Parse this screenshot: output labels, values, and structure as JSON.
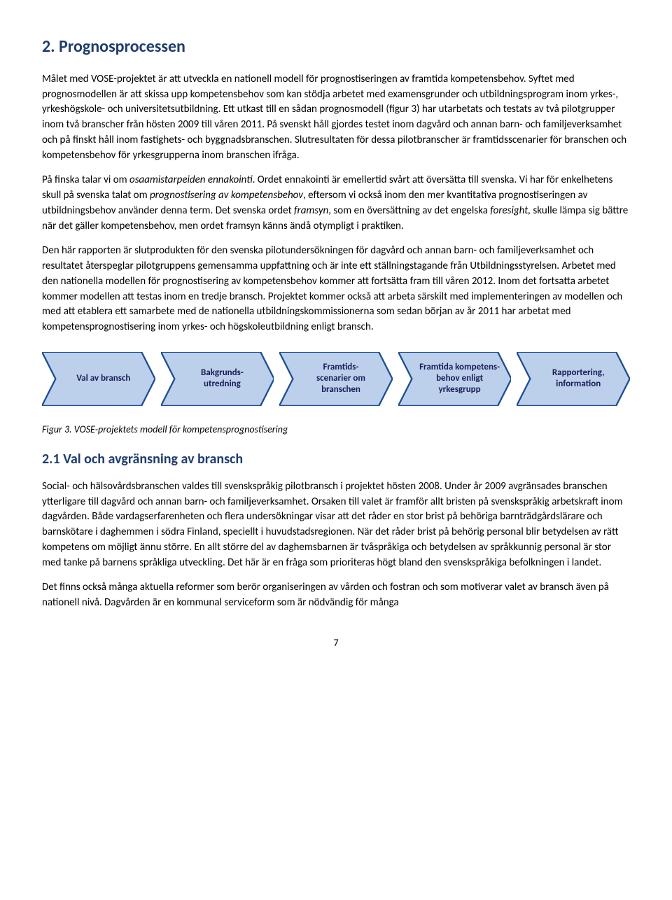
{
  "heading1": "2. Prognosprocessen",
  "p1_a": "Målet med VOSE-projektet är att utveckla en nationell modell för prognostiseringen av framtida kompetensbehov. Syftet med prognosmodellen är att skissa upp kompetensbehov som kan stödja arbetet med examensgrunder och utbildningsprogram inom yrkes-, yrkeshögskole- och universitetsutbildning. Ett utkast till en sådan prognosmodell (figur 3) har utarbetats och testats av två pilotgrupper inom två branscher från hösten 2009 till våren 2011. På svenskt håll gjordes testet inom dagvård och annan barn- och familjeverksamhet och på finskt håll inom fastighets- och byggnadsbranschen. Slutresultaten för dessa pilotbranscher är framtidsscenarier för branschen och kompetensbehov för yrkesgrupperna inom branschen ifråga.",
  "p2_a": "På finska talar vi om ",
  "p2_i1": "osaamistarpeiden ennakointi",
  "p2_b": ". Ordet ennakointi är emellertid svårt att översätta till svenska. Vi har för enkelhetens skull på svenska talat om ",
  "p2_i2": "prognostisering av kompetensbehov",
  "p2_c": ", eftersom vi också inom den mer kvantitativa prognostiseringen av utbildningsbehov använder denna term. Det svenska ordet ",
  "p2_i3": "framsyn",
  "p2_d": ", som en översättning av det engelska ",
  "p2_i4": "foresight,",
  "p2_e": " skulle lämpa sig bättre när det gäller kompetensbehov, men ordet framsyn känns ändå otympligt i praktiken.",
  "p3": "Den här rapporten är slutprodukten för den svenska pilotundersökningen för dagvård och annan barn- och familjeverksamhet och resultatet återspeglar pilotgruppens gemensamma uppfattning och är inte ett ställningstagande från Utbildningsstyrelsen. Arbetet med den nationella modellen för prognostisering av kompetensbehov kommer att fortsätta fram till våren 2012. Inom det fortsatta arbetet kommer modellen att testas inom en tredje bransch. Projektet kommer också att arbeta särskilt med implementeringen av modellen och med att etablera ett samarbete med de nationella utbildningskommissionerna som sedan början av år 2011 har arbetat med kompetensprognostisering inom yrkes- och högskoleutbildning enligt bransch.",
  "flow": {
    "type": "flowchart",
    "steps": [
      "Val av bransch",
      "Bakgrunds-\nutredning",
      "Framtids-\nscenarier om branschen",
      "Framtida kompetens-\nbehov enligt yrkesgrupp",
      "Rapportering, information"
    ],
    "fill_color": "#bcd0ec",
    "border_color": "#1f4f91",
    "text_color": "#1a1a55",
    "font_size_pt": 10,
    "font_weight": "bold",
    "background_color": "#ffffff"
  },
  "figure_caption": "Figur 3. VOSE-projektets modell för kompetensprognostisering",
  "heading2": "2.1 Val och avgränsning av bransch",
  "p4": "Social- och hälsovårdsbranschen valdes till svenskspråkig pilotbransch i projektet hösten 2008. Under år 2009 avgränsades branschen ytterligare till dagvård och annan barn- och familjeverksamhet. Orsaken till valet är framför allt bristen på svenskspråkig arbetskraft inom dagvården. Både vardagserfarenheten och flera undersökningar visar att det råder en stor brist på behöriga barnträdgårdslärare och barnskötare i daghemmen i södra Finland, speciellt i huvudstadsregionen. När det råder brist på behörig personal blir betydelsen av rätt kompetens om möjligt ännu större. En allt större del av daghemsbarnen är tvåspråkiga och betydelsen av språkkunnig personal är stor med tanke på barnens språkliga utveckling. Det här är en fråga som prioriteras högt bland den svenskspråkiga befolkningen i landet.",
  "p5": "Det finns också många aktuella reformer som berör organiseringen av vården och fostran och som motiverar valet av bransch även på nationell nivå. Dagvården är en kommunal serviceform som är nödvändig för många",
  "page_number": "7"
}
